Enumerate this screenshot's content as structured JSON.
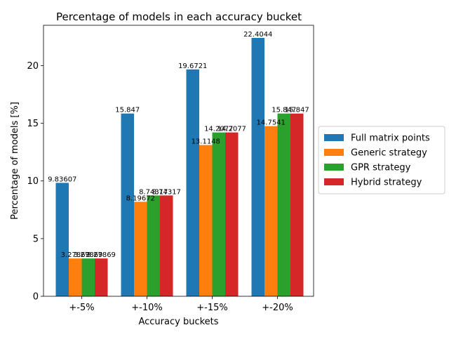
{
  "chart_data": {
    "type": "bar",
    "title": "Percentage of models in each accuracy bucket",
    "xlabel": "Accuracy buckets",
    "ylabel": "Percentage of models [%]",
    "categories": [
      "+-5%",
      "+-10%",
      "+-15%",
      "+-20%"
    ],
    "ylim": [
      0,
      23.5
    ],
    "yticks": [
      0,
      5,
      10,
      15,
      20
    ],
    "grid": false,
    "legend_position": "right",
    "series": [
      {
        "name": "Full matrix points",
        "color": "#1f77b4",
        "values": [
          9.83607,
          15.847,
          19.6721,
          22.4044
        ],
        "labels": [
          "9.83607",
          "15.847",
          "19.6721",
          "22.4044"
        ]
      },
      {
        "name": "Generic strategy",
        "color": "#ff7f0e",
        "values": [
          3.27869,
          8.19672,
          13.1148,
          14.7541
        ],
        "labels": [
          "3.27869",
          "8.19672",
          "13.1148",
          "14.7541"
        ]
      },
      {
        "name": "GPR strategy",
        "color": "#2ca02c",
        "values": [
          3.27869,
          8.74317,
          14.2077,
          15.847
        ],
        "labels": [
          "3.27869",
          "8.74317",
          "14.2077",
          "15.847"
        ]
      },
      {
        "name": "Hybrid strategy",
        "color": "#d62728",
        "values": [
          3.27869,
          8.74317,
          14.2077,
          15.847
        ],
        "labels": [
          "3.27869",
          "8.74317",
          "14.2077",
          "15.847"
        ]
      }
    ]
  }
}
